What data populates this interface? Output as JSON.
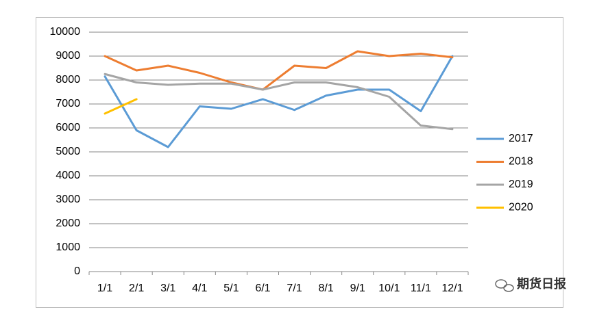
{
  "chart_data": {
    "type": "line",
    "categories": [
      "1/1",
      "2/1",
      "3/1",
      "4/1",
      "5/1",
      "6/1",
      "7/1",
      "8/1",
      "9/1",
      "10/1",
      "11/1",
      "12/1"
    ],
    "series": [
      {
        "name": "2017",
        "color": "#5b9bd5",
        "values": [
          8150,
          5900,
          5200,
          6900,
          6800,
          7200,
          6750,
          7350,
          7600,
          7600,
          6700,
          9000
        ]
      },
      {
        "name": "2018",
        "color": "#ed7d31",
        "values": [
          9000,
          8400,
          8600,
          8300,
          7900,
          7600,
          8600,
          8500,
          9200,
          9000,
          9100,
          8950
        ]
      },
      {
        "name": "2019",
        "color": "#a5a5a5",
        "values": [
          8250,
          7900,
          7800,
          7850,
          7850,
          7600,
          7900,
          7900,
          7700,
          7300,
          6100,
          5950
        ]
      },
      {
        "name": "2020",
        "color": "#ffc000",
        "values": [
          6600,
          7200,
          null,
          null,
          null,
          null,
          null,
          null,
          null,
          null,
          null,
          null
        ]
      }
    ],
    "ylim": [
      0,
      10000
    ],
    "yticks": [
      0,
      1000,
      2000,
      3000,
      4000,
      5000,
      6000,
      7000,
      8000,
      9000,
      10000
    ],
    "grid": true,
    "legend": "right",
    "watermark": "期货日报"
  }
}
